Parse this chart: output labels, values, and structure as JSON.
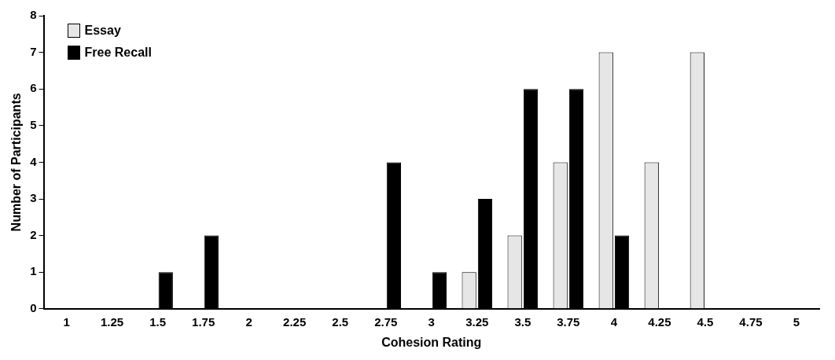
{
  "chart_data": {
    "type": "bar",
    "xlabel": "Cohesion Rating",
    "ylabel": "Number of Participants",
    "categories": [
      "1",
      "1.25",
      "1.5",
      "1.75",
      "2",
      "2.25",
      "2.5",
      "2.75",
      "3",
      "3.25",
      "3.5",
      "3.75",
      "4",
      "4.25",
      "4.5",
      "4.75",
      "5"
    ],
    "series": [
      {
        "name": "Essay",
        "color": "#e6e6e6",
        "values": [
          0,
          0,
          0,
          0,
          0,
          0,
          0,
          0,
          0,
          1,
          2,
          4,
          7,
          4,
          7,
          0,
          0
        ]
      },
      {
        "name": "Free Recall",
        "color": "#000000",
        "values": [
          0,
          0,
          1,
          2,
          0,
          0,
          0,
          4,
          1,
          3,
          6,
          6,
          2,
          0,
          0,
          0,
          0
        ]
      }
    ],
    "ylim": [
      0,
      8
    ],
    "yticks": [
      0,
      1,
      2,
      3,
      4,
      5,
      6,
      7,
      8
    ],
    "grid": false,
    "legend": "top left"
  }
}
